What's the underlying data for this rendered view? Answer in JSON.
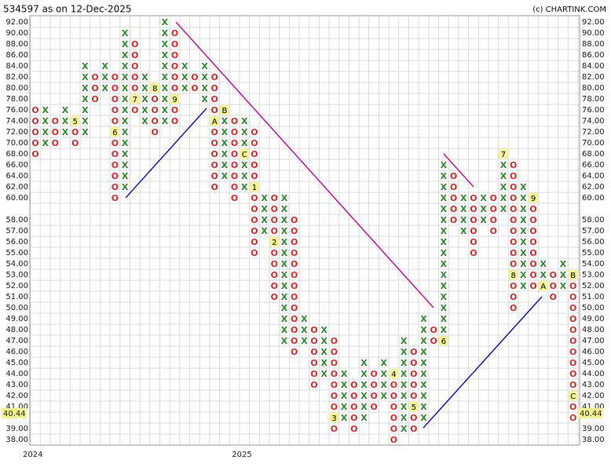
{
  "chart_data": {
    "type": "point_and_figure",
    "title": "534597 as on 12-Dec-2025",
    "credit": "(c) CHARTINK.COM",
    "last_price": 40.44,
    "x_color": "#2e8b2e",
    "o_color": "#e02828",
    "grid": true,
    "levels": [
      92,
      90,
      88,
      86,
      84,
      82,
      80,
      78,
      76,
      74,
      72,
      70,
      68,
      66,
      64,
      62,
      60,
      59,
      58,
      57,
      56,
      55,
      54,
      53,
      52,
      51,
      50,
      49,
      48,
      47,
      46,
      45,
      44,
      43,
      42,
      41,
      40,
      39,
      38
    ],
    "yticks": [
      {
        "value": 92,
        "label": "92.00"
      },
      {
        "value": 90,
        "label": "90.00"
      },
      {
        "value": 88,
        "label": "88.00"
      },
      {
        "value": 86,
        "label": "86.00"
      },
      {
        "value": 84,
        "label": "84.00"
      },
      {
        "value": 82,
        "label": "82.00"
      },
      {
        "value": 80,
        "label": "80.00"
      },
      {
        "value": 78,
        "label": "78.00"
      },
      {
        "value": 76,
        "label": "76.00"
      },
      {
        "value": 74,
        "label": "74.00"
      },
      {
        "value": 72,
        "label": "72.00"
      },
      {
        "value": 70,
        "label": "70.00"
      },
      {
        "value": 68,
        "label": "68.00"
      },
      {
        "value": 66,
        "label": "66.00"
      },
      {
        "value": 64,
        "label": "64.00"
      },
      {
        "value": 62,
        "label": "62.00"
      },
      {
        "value": 60,
        "label": "60.00"
      },
      {
        "value": 58,
        "label": "58.00"
      },
      {
        "value": 57,
        "label": "57.00"
      },
      {
        "value": 56,
        "label": "56.00"
      },
      {
        "value": 55,
        "label": "55.00"
      },
      {
        "value": 54,
        "label": "54.00"
      },
      {
        "value": 53,
        "label": "53.00"
      },
      {
        "value": 52,
        "label": "52.00"
      },
      {
        "value": 51,
        "label": "51.00"
      },
      {
        "value": 50,
        "label": "50.00"
      },
      {
        "value": 49,
        "label": "49.00"
      },
      {
        "value": 48,
        "label": "48.00"
      },
      {
        "value": 47,
        "label": "47.00"
      },
      {
        "value": 46,
        "label": "46.00"
      },
      {
        "value": 45,
        "label": "45.00"
      },
      {
        "value": 44,
        "label": "44.00"
      },
      {
        "value": 43,
        "label": "43.00"
      },
      {
        "value": 42,
        "label": "42.00"
      },
      {
        "value": 41,
        "label": "41.00"
      },
      {
        "value": 39,
        "label": "39.00"
      },
      {
        "value": 38,
        "label": "38.00"
      }
    ],
    "year_labels": [
      {
        "column": 0,
        "label": "2024"
      },
      {
        "column": 21,
        "label": "2025"
      }
    ],
    "columns": [
      {
        "kind": "O",
        "high": 76,
        "low": 68
      },
      {
        "kind": "X",
        "high": 76,
        "low": 70
      },
      {
        "kind": "O",
        "high": 74,
        "low": 70
      },
      {
        "kind": "X",
        "high": 76,
        "low": 72
      },
      {
        "kind": "O",
        "high": 74,
        "low": 70,
        "markers": [
          {
            "level": 74,
            "label": "5"
          }
        ]
      },
      {
        "kind": "X",
        "high": 84,
        "low": 72
      },
      {
        "kind": "O",
        "high": 82,
        "low": 78
      },
      {
        "kind": "X",
        "high": 84,
        "low": 80
      },
      {
        "kind": "O",
        "high": 82,
        "low": 60,
        "markers": [
          {
            "level": 72,
            "label": "6"
          }
        ]
      },
      {
        "kind": "X",
        "high": 90,
        "low": 62
      },
      {
        "kind": "O",
        "high": 88,
        "low": 76,
        "markers": [
          {
            "level": 78,
            "label": "7"
          }
        ]
      },
      {
        "kind": "X",
        "high": 82,
        "low": 74
      },
      {
        "kind": "O",
        "high": 80,
        "low": 72,
        "markers": [
          {
            "level": 80,
            "label": "8"
          }
        ]
      },
      {
        "kind": "X",
        "high": 92,
        "low": 74
      },
      {
        "kind": "O",
        "high": 90,
        "low": 74,
        "markers": [
          {
            "level": 78,
            "label": "9"
          }
        ]
      },
      {
        "kind": "X",
        "high": 84,
        "low": 80
      },
      {
        "kind": "O",
        "high": 82,
        "low": 80
      },
      {
        "kind": "X",
        "high": 84,
        "low": 78
      },
      {
        "kind": "O",
        "high": 82,
        "low": 62,
        "markers": [
          {
            "level": 74,
            "label": "A"
          }
        ]
      },
      {
        "kind": "X",
        "high": 76,
        "low": 64,
        "markers": [
          {
            "level": 76,
            "label": "B"
          }
        ]
      },
      {
        "kind": "O",
        "high": 74,
        "low": 60
      },
      {
        "kind": "X",
        "high": 74,
        "low": 62,
        "markers": [
          {
            "level": 68,
            "label": "C"
          }
        ]
      },
      {
        "kind": "O",
        "high": 72,
        "low": 55,
        "markers": [
          {
            "level": 62,
            "label": "1"
          }
        ]
      },
      {
        "kind": "X",
        "high": 60,
        "low": 57
      },
      {
        "kind": "O",
        "high": 60,
        "low": 51,
        "markers": [
          {
            "level": 56,
            "label": "2"
          }
        ]
      },
      {
        "kind": "X",
        "high": 60,
        "low": 47
      },
      {
        "kind": "O",
        "high": 58,
        "low": 46
      },
      {
        "kind": "X",
        "high": 49,
        "low": 47
      },
      {
        "kind": "O",
        "high": 48,
        "low": 43
      },
      {
        "kind": "X",
        "high": 48,
        "low": 44
      },
      {
        "kind": "O",
        "high": 47,
        "low": 39,
        "markers": [
          {
            "level": 40,
            "label": "3"
          }
        ]
      },
      {
        "kind": "X",
        "high": 44,
        "low": 40
      },
      {
        "kind": "O",
        "high": 43,
        "low": 39
      },
      {
        "kind": "X",
        "high": 45,
        "low": 40
      },
      {
        "kind": "O",
        "high": 44,
        "low": 41
      },
      {
        "kind": "X",
        "high": 45,
        "low": 42
      },
      {
        "kind": "O",
        "high": 44,
        "low": 38,
        "markers": [
          {
            "level": 44,
            "label": "4"
          }
        ]
      },
      {
        "kind": "X",
        "high": 47,
        "low": 39
      },
      {
        "kind": "O",
        "high": 46,
        "low": 39,
        "markers": [
          {
            "level": 41,
            "label": "5"
          }
        ]
      },
      {
        "kind": "X",
        "high": 49,
        "low": 40
      },
      {
        "kind": "O",
        "high": 48,
        "low": 47
      },
      {
        "kind": "X",
        "high": 66,
        "low": 47,
        "markers": [
          {
            "level": 47,
            "label": "6"
          }
        ]
      },
      {
        "kind": "O",
        "high": 64,
        "low": 58
      },
      {
        "kind": "X",
        "high": 60,
        "low": 57
      },
      {
        "kind": "O",
        "high": 60,
        "low": 55
      },
      {
        "kind": "X",
        "high": 60,
        "low": 58
      },
      {
        "kind": "O",
        "high": 60,
        "low": 57
      },
      {
        "kind": "X",
        "high": 68,
        "low": 59,
        "markers": [
          {
            "level": 68,
            "label": "7"
          }
        ]
      },
      {
        "kind": "O",
        "high": 66,
        "low": 50,
        "markers": [
          {
            "level": 53,
            "label": "8"
          }
        ]
      },
      {
        "kind": "X",
        "high": 62,
        "low": 52
      },
      {
        "kind": "O",
        "high": 60,
        "low": 52,
        "markers": [
          {
            "level": 60,
            "label": "9"
          }
        ]
      },
      {
        "kind": "X",
        "high": 54,
        "low": 52,
        "markers": [
          {
            "level": 52,
            "label": "A"
          }
        ]
      },
      {
        "kind": "O",
        "high": 53,
        "low": 51
      },
      {
        "kind": "X",
        "high": 54,
        "low": 52
      },
      {
        "kind": "O",
        "high": 53,
        "low": 40,
        "markers": [
          {
            "level": 53,
            "label": "B"
          },
          {
            "level": 42,
            "label": "C"
          }
        ]
      }
    ]
  }
}
